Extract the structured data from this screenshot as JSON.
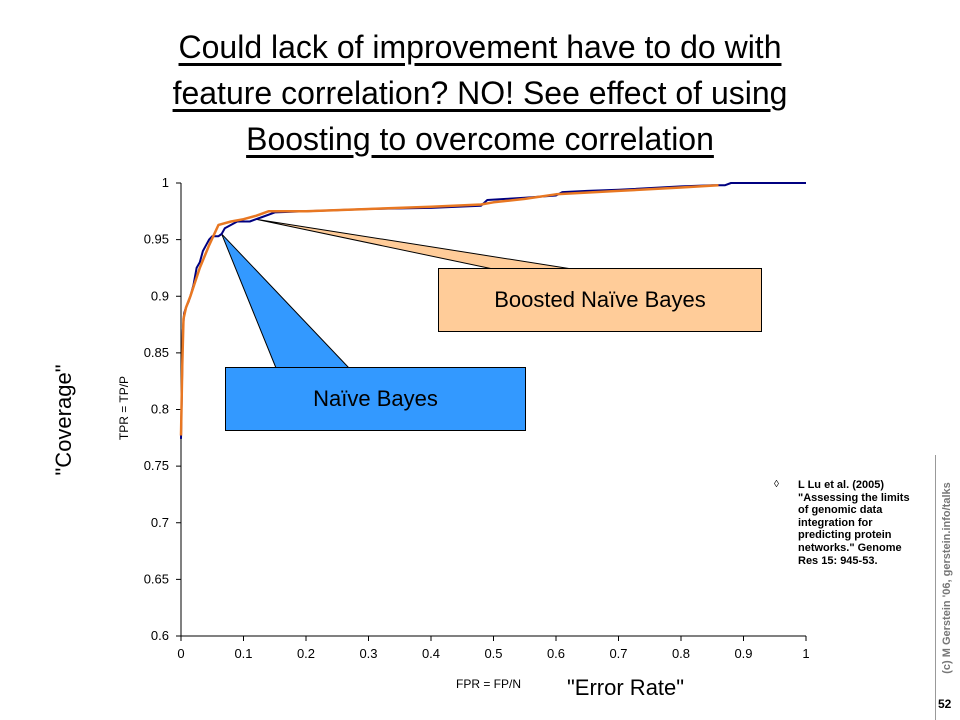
{
  "slide": {
    "title_lines": [
      "Could lack of improvement have to do with",
      "feature correlation? NO! See effect of using",
      "Boosting to overcome correlation"
    ],
    "coverage_label": "\"Coverage\"",
    "error_rate_label": "\"Error Rate\"",
    "reference": {
      "bullet": "◊",
      "text": "L Lu et al. (2005) \"Assessing the limits of genomic data integration for predicting protein networks.\" Genome Res 15: 945-53."
    },
    "side_credit": "(c) M Gerstein '06, gerstein.info/talks",
    "page_number": "52"
  },
  "callouts": {
    "boosted": "Boosted Naïve Bayes",
    "naive": "Naïve Bayes"
  },
  "chart_data": {
    "type": "line",
    "xlabel": "FPR = FP/N",
    "ylabel": "TPR = TP/P",
    "xlim": [
      0,
      1
    ],
    "ylim": [
      0.6,
      1
    ],
    "x_ticks": [
      "0",
      "0.1",
      "0.2",
      "0.3",
      "0.4",
      "0.5",
      "0.6",
      "0.7",
      "0.8",
      "0.9",
      "1"
    ],
    "y_ticks": [
      "0.6",
      "0.65",
      "0.7",
      "0.75",
      "0.8",
      "0.85",
      "0.9",
      "0.95",
      "1"
    ],
    "grid": false,
    "series": [
      {
        "color": "#000080",
        "x": [
          0,
          0.002,
          0.003,
          0.005,
          0.008,
          0.012,
          0.015,
          0.02,
          0.025,
          0.03,
          0.035,
          0.04,
          0.045,
          0.05,
          0.06,
          0.065,
          0.07,
          0.09,
          0.11,
          0.12,
          0.13,
          0.15,
          0.2,
          0.3,
          0.4,
          0.48,
          0.49,
          0.52,
          0.55,
          0.6,
          0.61,
          0.65,
          0.7,
          0.8,
          0.85,
          0.87,
          0.88,
          1
        ],
        "y": [
          0.774,
          0.84,
          0.87,
          0.885,
          0.89,
          0.895,
          0.9,
          0.91,
          0.925,
          0.93,
          0.94,
          0.945,
          0.95,
          0.953,
          0.953,
          0.955,
          0.96,
          0.966,
          0.966,
          0.968,
          0.97,
          0.974,
          0.975,
          0.977,
          0.978,
          0.98,
          0.985,
          0.986,
          0.987,
          0.989,
          0.992,
          0.993,
          0.994,
          0.997,
          0.998,
          0.998,
          1,
          1
        ]
      },
      {
        "color": "#e87722",
        "x": [
          0,
          0.002,
          0.004,
          0.008,
          0.015,
          0.03,
          0.045,
          0.06,
          0.08,
          0.1,
          0.12,
          0.14,
          0.2,
          0.3,
          0.4,
          0.48,
          0.5,
          0.55,
          0.6,
          0.7,
          0.8,
          0.86
        ],
        "y": [
          0.777,
          0.84,
          0.88,
          0.89,
          0.9,
          0.925,
          0.945,
          0.963,
          0.966,
          0.968,
          0.971,
          0.975,
          0.975,
          0.977,
          0.979,
          0.981,
          0.983,
          0.986,
          0.99,
          0.993,
          0.996,
          0.998
        ]
      }
    ]
  }
}
